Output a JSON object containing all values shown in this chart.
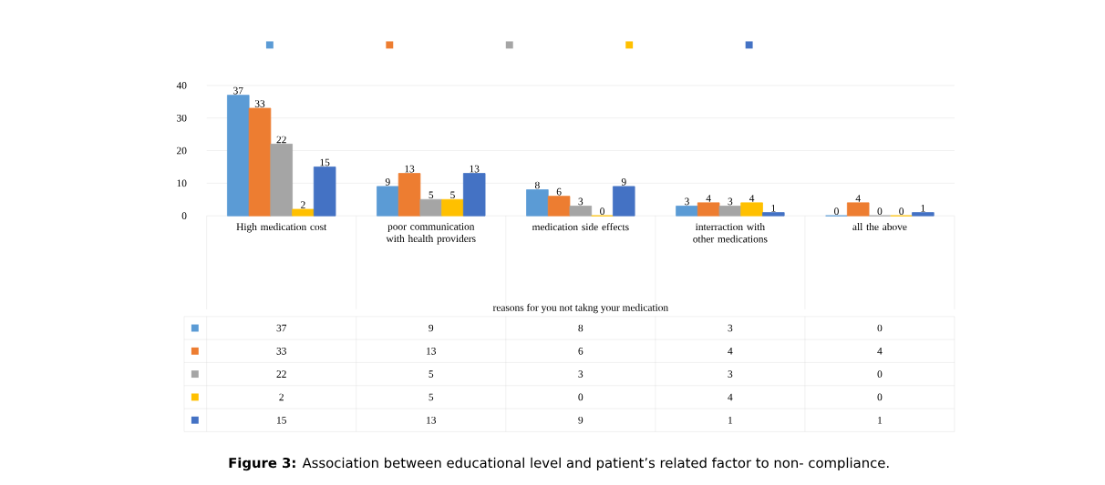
{
  "chart_data": {
    "type": "bar",
    "title": "**Figure 3:** Association between educational level and patient’s related factor to non- compliance.",
    "annotations": [
      "reasons for you not takng your medication"
    ],
    "categories": [
      "High medication cost",
      "poor communication with health providers",
      "medication side effects",
      "interraction with other medications",
      "all the above"
    ],
    "series": [
      {
        "color": "#5b9bd5",
        "values": [
          37,
          9,
          8,
          3,
          0
        ],
        "value_labels": [
          "37",
          "9",
          "8",
          "3",
          "0"
        ]
      },
      {
        "color": "#ed7d31",
        "values": [
          33,
          13,
          6,
          4,
          4
        ],
        "value_labels": [
          "33",
          "13",
          "6",
          "4",
          "4"
        ]
      },
      {
        "color": "#a5a5a5",
        "values": [
          22,
          5,
          3,
          3,
          0
        ],
        "value_labels": [
          "22",
          "5",
          "3",
          "3",
          "0"
        ]
      },
      {
        "color": "#ffc000",
        "values": [
          2,
          5,
          0,
          4,
          0
        ],
        "value_labels": [
          "2",
          "5",
          "0",
          "4",
          "0"
        ]
      },
      {
        "color": "#4472c4",
        "values": [
          15,
          13,
          9,
          1,
          1
        ],
        "value_labels": [
          "15",
          "13",
          "9",
          "1",
          "1"
        ]
      }
    ],
    "ylim": [
      0,
      40
    ],
    "yticks": [
      0,
      10,
      20,
      30,
      40
    ],
    "grid": "y",
    "data_labels": true
  }
}
